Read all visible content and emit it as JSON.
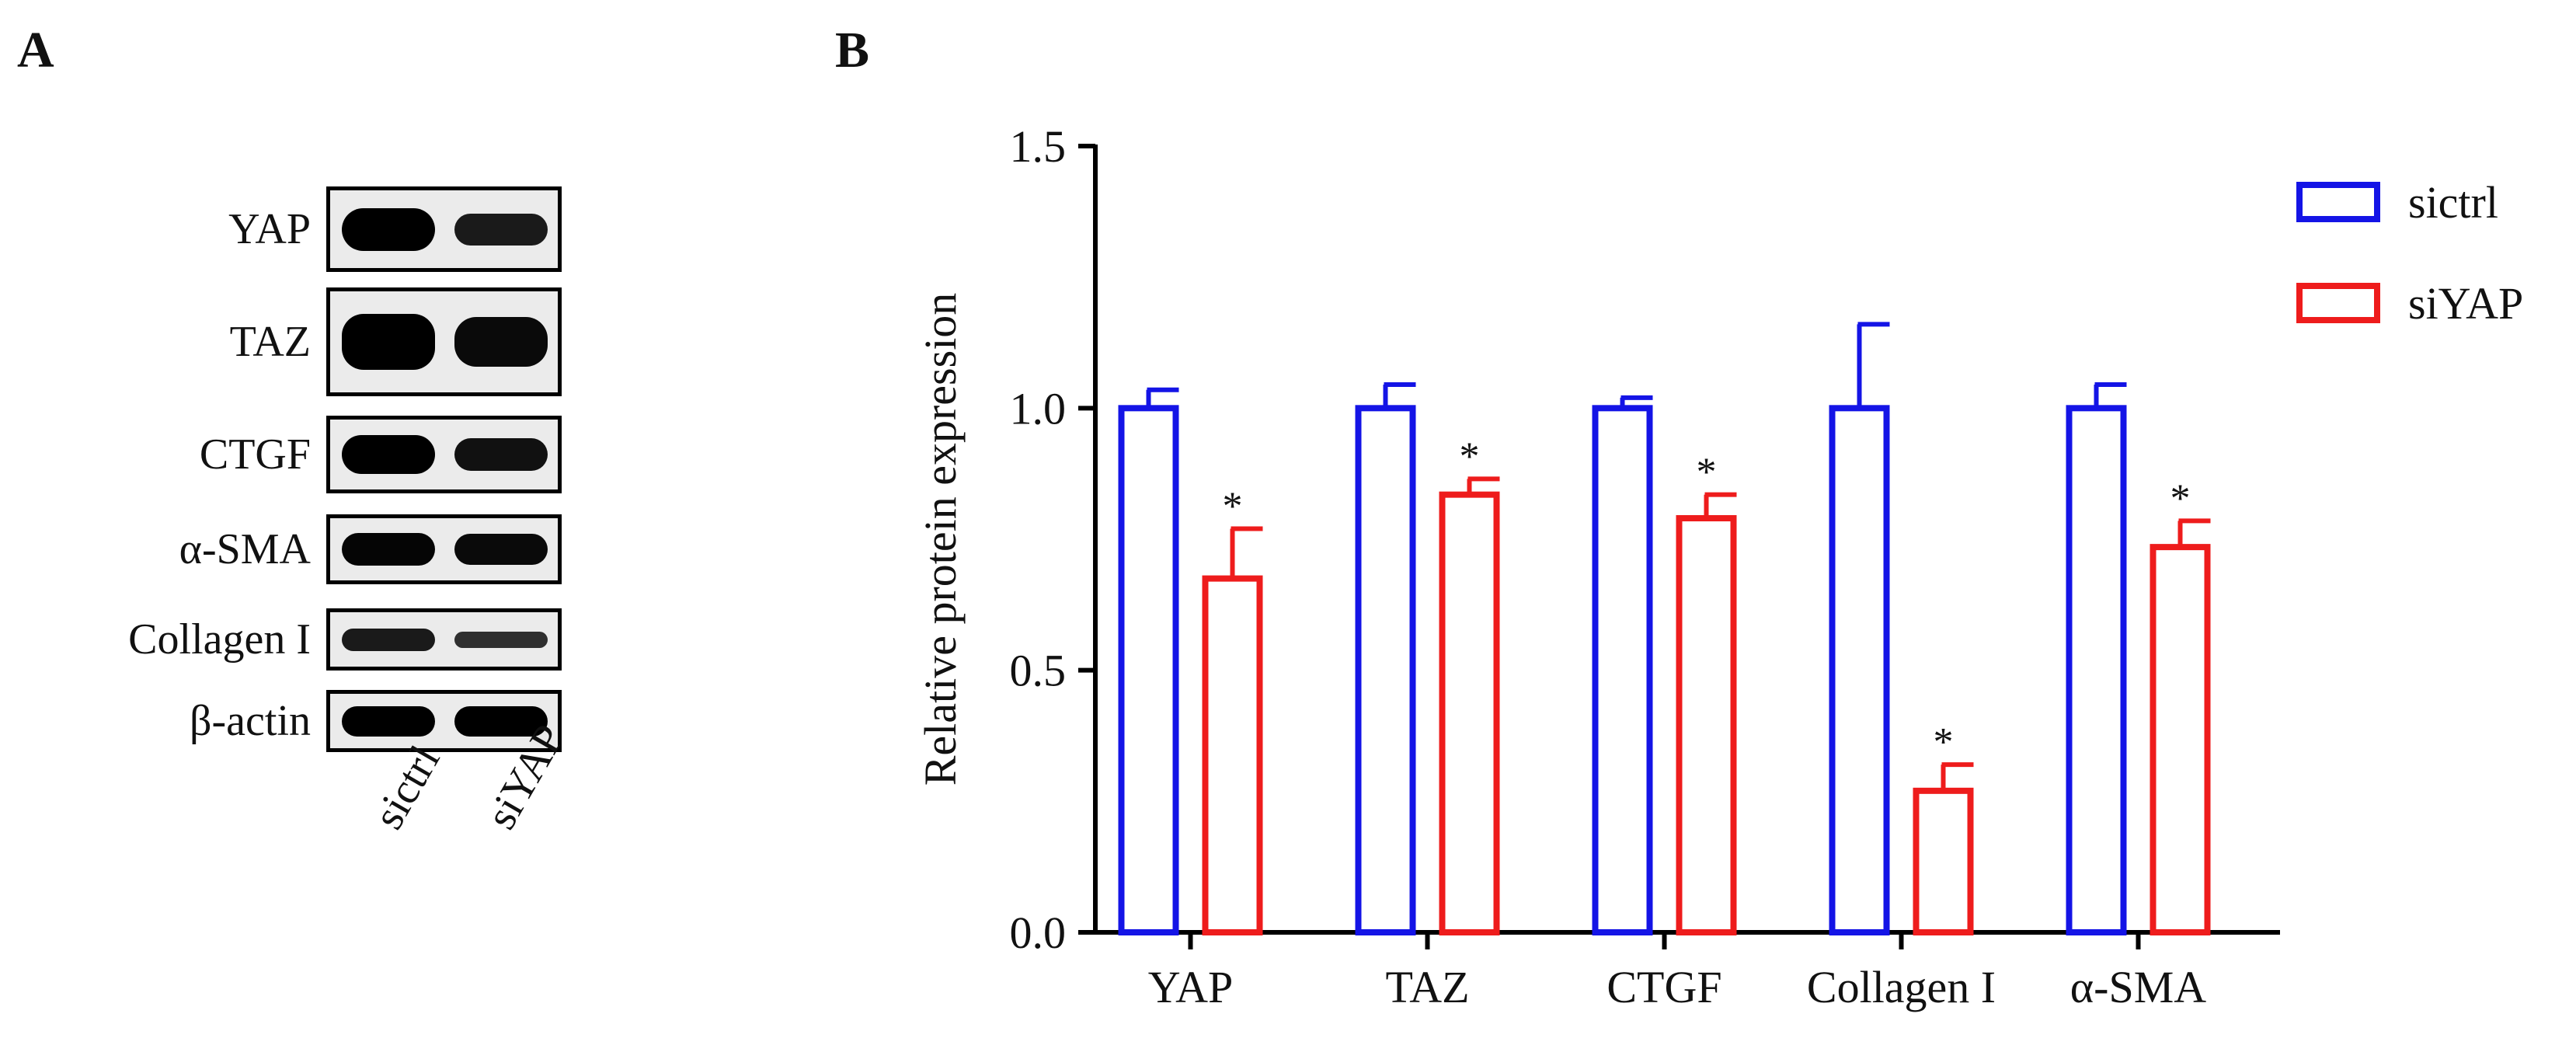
{
  "panels": {
    "a_label": "A",
    "b_label": "B"
  },
  "blot": {
    "rows": [
      {
        "protein": "YAP",
        "sictrl_intensity": 1.0,
        "siYAP_intensity": 0.75
      },
      {
        "protein": "TAZ",
        "sictrl_intensity": 1.0,
        "siYAP_intensity": 0.9
      },
      {
        "protein": "CTGF",
        "sictrl_intensity": 1.0,
        "siYAP_intensity": 0.85
      },
      {
        "protein": "α-SMA",
        "sictrl_intensity": 0.95,
        "siYAP_intensity": 0.9
      },
      {
        "protein": "Collagen I",
        "sictrl_intensity": 0.75,
        "siYAP_intensity": 0.55
      },
      {
        "protein": "β-actin",
        "sictrl_intensity": 1.0,
        "siYAP_intensity": 1.0
      }
    ],
    "lanes": [
      "sictrl",
      "siYAP"
    ]
  },
  "chart_data": {
    "type": "bar",
    "title": "",
    "xlabel": "",
    "ylabel": "Relative protein expression",
    "ylim": [
      0,
      1.5
    ],
    "yticks": [
      "0.0",
      "0.5",
      "1.0",
      "1.5"
    ],
    "ytick_values": [
      0,
      0.5,
      1.0,
      1.5
    ],
    "categories": [
      "YAP",
      "TAZ",
      "CTGF",
      "Collagen I",
      "α-SMA"
    ],
    "series": [
      {
        "name": "sictrl",
        "color": "#1414e6",
        "values": [
          1.0,
          1.0,
          1.0,
          1.0,
          1.0
        ],
        "errors": [
          0.035,
          0.045,
          0.02,
          0.16,
          0.045
        ],
        "significance": [
          "",
          "",
          "",
          "",
          ""
        ]
      },
      {
        "name": "siYAP",
        "color": "#ee1c1c",
        "values": [
          0.675,
          0.835,
          0.79,
          0.27,
          0.735
        ],
        "errors": [
          0.095,
          0.03,
          0.045,
          0.05,
          0.05
        ],
        "significance": [
          "*",
          "*",
          "*",
          "*",
          "*"
        ]
      }
    ],
    "legend_position": "top-right"
  }
}
